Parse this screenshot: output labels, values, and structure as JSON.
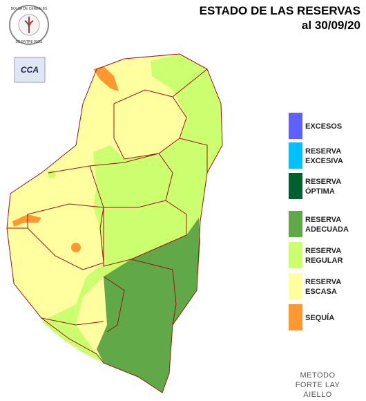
{
  "header": {
    "title": "ESTADO DE LAS RESERVAS",
    "date": "al 30/09/20"
  },
  "logos": {
    "bolsa_top": "BOLSA DE CEREALES",
    "bolsa_bottom": "DE ENTRE RIOS",
    "cca": "CCA"
  },
  "legend": [
    {
      "lines": [
        "EXCESOS"
      ],
      "color": "#6060ff"
    },
    {
      "lines": [
        "RESERVA",
        "EXCESIVA"
      ],
      "color": "#00c0ff"
    },
    {
      "lines": [
        "RESERVA",
        "ÓPTIMA"
      ],
      "color": "#006030"
    },
    {
      "lines": [
        "RESERVA",
        "ADECUADA"
      ],
      "color": "#60a848"
    },
    {
      "lines": [
        "RESERVA",
        "REGULAR"
      ],
      "color": "#ccff70"
    },
    {
      "lines": [
        "RESERVA",
        "ESCASA"
      ],
      "color": "#ffffa0"
    },
    {
      "lines": [
        "SEQUÍA"
      ],
      "color": "#ff9830"
    }
  ],
  "footer": {
    "method": [
      "METODO",
      "FORTE LAY",
      "AIELLO"
    ]
  }
}
